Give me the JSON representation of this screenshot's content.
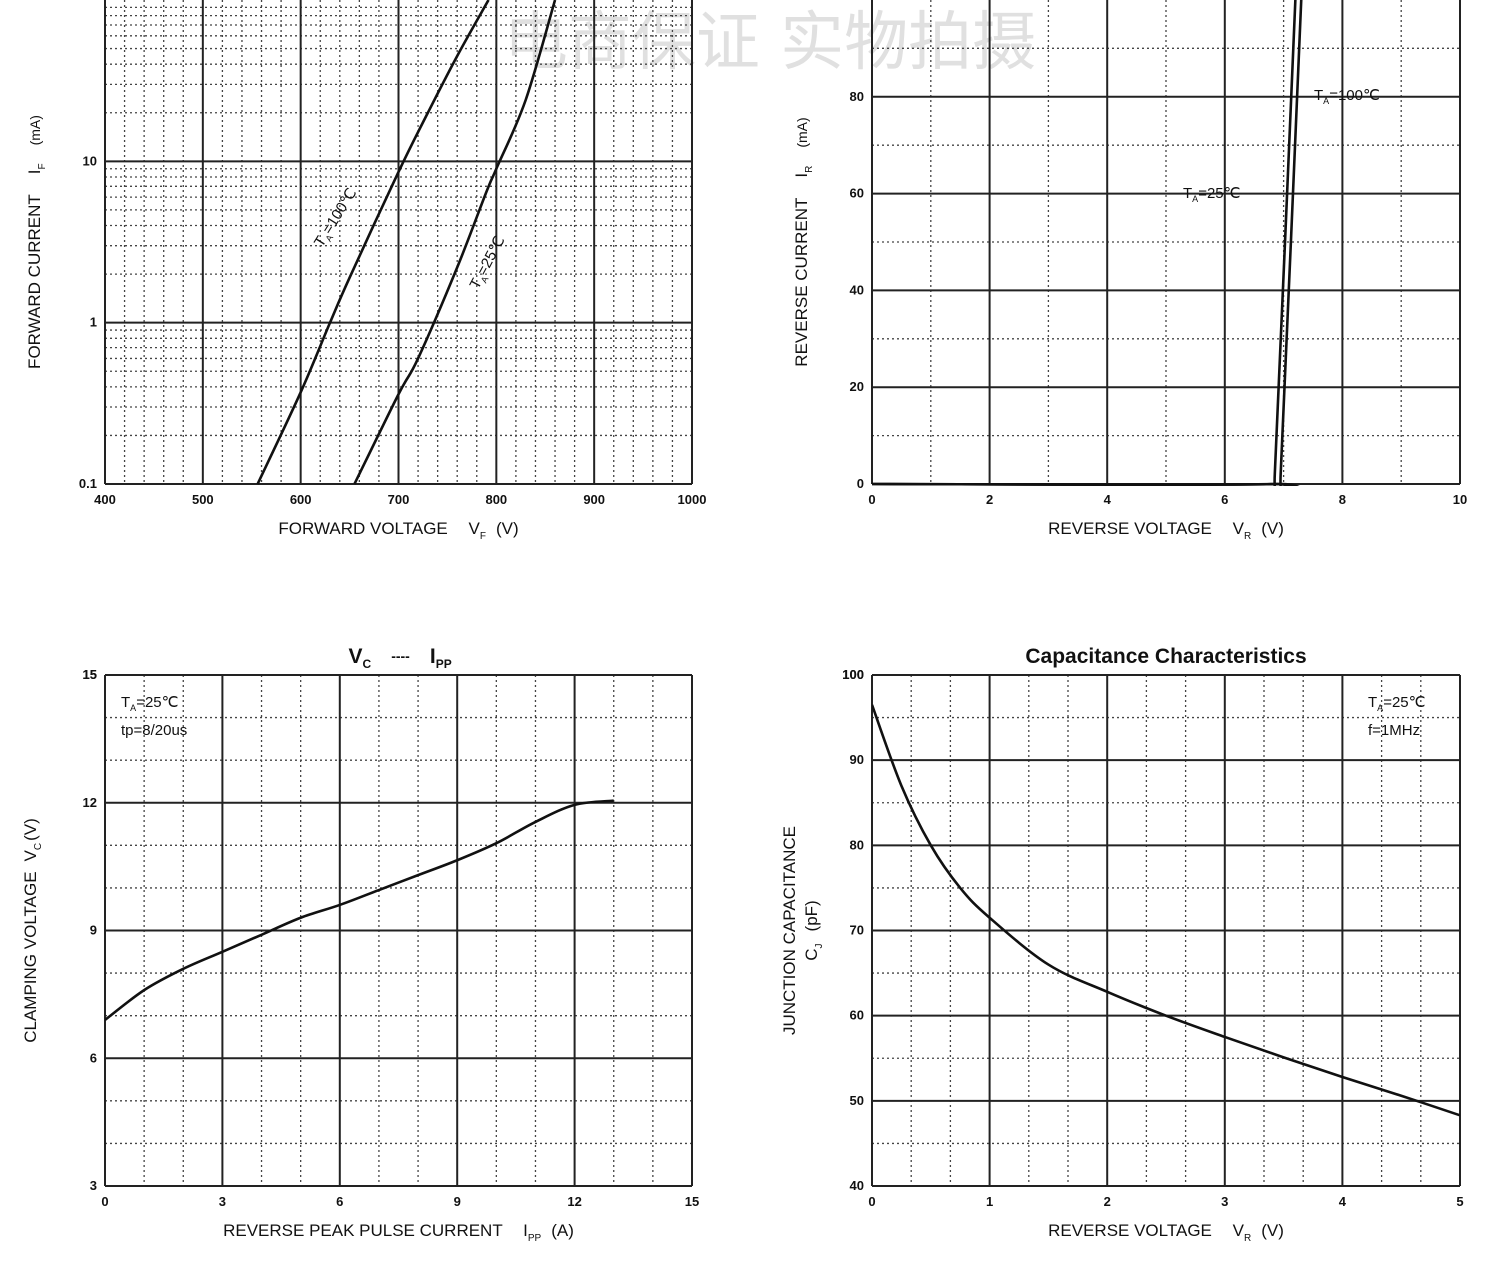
{
  "watermark": "电商保证 实物拍摄",
  "chart_data": [
    {
      "id": "fwd",
      "type": "line",
      "title": "",
      "xlabel": "FORWARD VOLTAGE",
      "xsym": "V",
      "xsub": "F",
      "xunit": "(V)",
      "ylabel": "FORWARD CURRENT",
      "ysym": "I",
      "ysub": "F",
      "yunit": "(mA)",
      "xscale": "linear",
      "yscale": "log",
      "xlim": [
        400,
        1000
      ],
      "ylim": [
        0.1,
        100
      ],
      "xticks": [
        400,
        500,
        600,
        700,
        800,
        900,
        1000
      ],
      "xtick_labels": [
        "400",
        "500",
        "600",
        "700",
        "800",
        "900",
        "1000"
      ],
      "yticks": [
        0.1,
        1,
        10
      ],
      "ytick_labels": [
        "0.1",
        "1",
        "10"
      ],
      "grid": true,
      "series": [
        {
          "name": "TA=100℃",
          "x": [
            556,
            600,
            630,
            650,
            700,
            730,
            760,
            792
          ],
          "y": [
            0.1,
            0.37,
            1.0,
            1.9,
            8.6,
            20,
            45,
            100
          ]
        },
        {
          "name": "TA=25℃",
          "x": [
            655,
            700,
            720,
            760,
            790,
            800,
            830,
            860
          ],
          "y": [
            0.1,
            0.36,
            0.6,
            2.2,
            6.5,
            9.0,
            24,
            100
          ]
        }
      ],
      "labels": [
        {
          "text": "TA=100℃",
          "main": "T",
          "sub": "A",
          "rest": "=100℃"
        },
        {
          "text": "TA=25℃",
          "main": "T",
          "sub": "A",
          "rest": "=25℃"
        }
      ]
    },
    {
      "id": "rev",
      "type": "line",
      "title": "",
      "xlabel": "REVERSE VOLTAGE",
      "xsym": "V",
      "xsub": "R",
      "xunit": "(V)",
      "ylabel": "REVERSE CURRENT",
      "ysym": "I",
      "ysub": "R",
      "yunit": "(mA)",
      "xscale": "linear",
      "yscale": "linear",
      "xlim": [
        0,
        10
      ],
      "ylim": [
        0,
        100
      ],
      "xticks": [
        0,
        2,
        4,
        6,
        8,
        10
      ],
      "xtick_labels": [
        "0",
        "2",
        "4",
        "6",
        "8",
        "10"
      ],
      "yticks": [
        0,
        20,
        40,
        60,
        80
      ],
      "ytick_labels": [
        "0",
        "20",
        "40",
        "60",
        "80"
      ],
      "grid": true,
      "series": [
        {
          "name": "TA=25℃",
          "x": [
            0,
            6.9,
            6.95,
            7.3
          ],
          "y": [
            0,
            0,
            2,
            100
          ]
        },
        {
          "name": "TA=100℃",
          "x": [
            0,
            6.8,
            6.85,
            7.2
          ],
          "y": [
            0,
            0,
            2,
            100
          ]
        }
      ],
      "labels": [
        {
          "text": "TA=100℃",
          "main": "T",
          "sub": "A",
          "rest": "=100℃"
        },
        {
          "text": "TA=25℃",
          "main": "T",
          "sub": "A",
          "rest": "=25℃"
        }
      ]
    },
    {
      "id": "clamp",
      "type": "line",
      "title": "VC ---- IPP",
      "title_parts": {
        "a": "V",
        "a_sub": "C",
        "dash": "----",
        "b": "I",
        "b_sub": "PP"
      },
      "xlabel": "REVERSE PEAK PULSE CURRENT",
      "xsym": "I",
      "xsub": "PP",
      "xunit": "(A)",
      "ylabel": "CLAMPING VOLTAGE",
      "ysym": "V",
      "ysub": "C",
      "yunit": "(V)",
      "xscale": "linear",
      "yscale": "linear",
      "xlim": [
        0,
        15
      ],
      "ylim": [
        3,
        15
      ],
      "xticks": [
        0,
        3,
        6,
        9,
        12,
        15
      ],
      "xtick_labels": [
        "0",
        "3",
        "6",
        "9",
        "12",
        "15"
      ],
      "yticks": [
        3,
        6,
        9,
        12,
        15
      ],
      "ytick_labels": [
        "3",
        "6",
        "9",
        "12",
        "15"
      ],
      "grid": true,
      "series": [
        {
          "name": "VC",
          "x": [
            0,
            1,
            2,
            3,
            4,
            5,
            6,
            7,
            8,
            9,
            10,
            11,
            12,
            13
          ],
          "y": [
            6.9,
            7.6,
            8.1,
            8.5,
            8.9,
            9.3,
            9.6,
            9.95,
            10.3,
            10.65,
            11.05,
            11.55,
            11.95,
            12.05
          ]
        }
      ],
      "legend": {
        "line1_main": "T",
        "line1_sub": "A",
        "line1_rest": "=25℃",
        "line2": "tp=8/20us"
      }
    },
    {
      "id": "cap",
      "type": "line",
      "title": "Capacitance Characteristics",
      "xlabel": "REVERSE VOLTAGE",
      "xsym": "V",
      "xsub": "R",
      "xunit": "(V)",
      "ylabel": "JUNCTION CAPACITANCE",
      "ysym": "C",
      "ysub": "J",
      "yunit": "(pF)",
      "xscale": "linear",
      "yscale": "linear",
      "xlim": [
        0,
        5
      ],
      "ylim": [
        40,
        100
      ],
      "xticks": [
        0,
        1,
        2,
        3,
        4,
        5
      ],
      "xtick_labels": [
        "0",
        "1",
        "2",
        "3",
        "4",
        "5"
      ],
      "yticks": [
        40,
        50,
        60,
        70,
        80,
        90,
        100
      ],
      "ytick_labels": [
        "40",
        "50",
        "60",
        "70",
        "80",
        "90",
        "100"
      ],
      "grid": true,
      "series": [
        {
          "name": "CJ",
          "x": [
            0,
            0.25,
            0.5,
            0.75,
            1,
            1.5,
            2,
            2.5,
            3,
            3.5,
            4,
            4.5,
            5
          ],
          "y": [
            96.5,
            87,
            80,
            75,
            71.5,
            66,
            62.8,
            60,
            57.5,
            55.1,
            52.8,
            50.6,
            48.3
          ]
        }
      ],
      "legend": {
        "line1_main": "T",
        "line1_sub": "A",
        "line1_rest": "=25℃",
        "line2": "f=1MHz"
      }
    }
  ]
}
